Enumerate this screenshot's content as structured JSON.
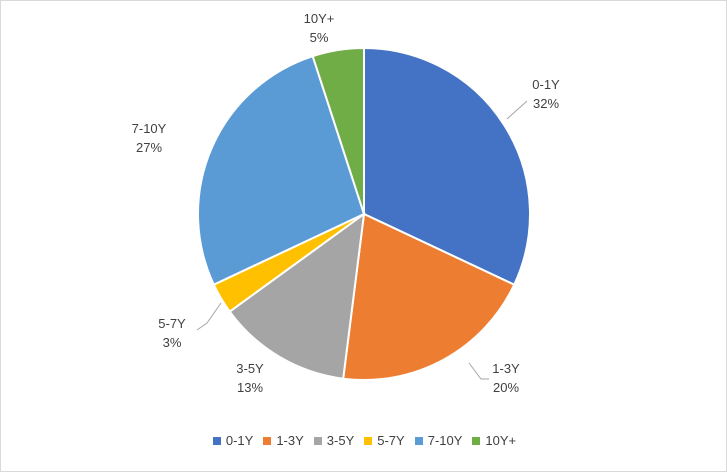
{
  "chart_data": {
    "type": "pie",
    "title": "",
    "categories": [
      "0-1Y",
      "1-3Y",
      "3-5Y",
      "5-7Y",
      "7-10Y",
      "10Y+"
    ],
    "values": [
      32,
      20,
      13,
      3,
      27,
      5
    ],
    "value_labels": [
      "32%",
      "20%",
      "13%",
      "3%",
      "27%",
      "5%"
    ],
    "colors": [
      "#4472C4",
      "#ED7D31",
      "#A5A5A5",
      "#FFC000",
      "#5B9BD5",
      "#70AD47"
    ],
    "legend_position": "bottom",
    "start_angle": "12 o'clock",
    "direction": "clockwise"
  }
}
